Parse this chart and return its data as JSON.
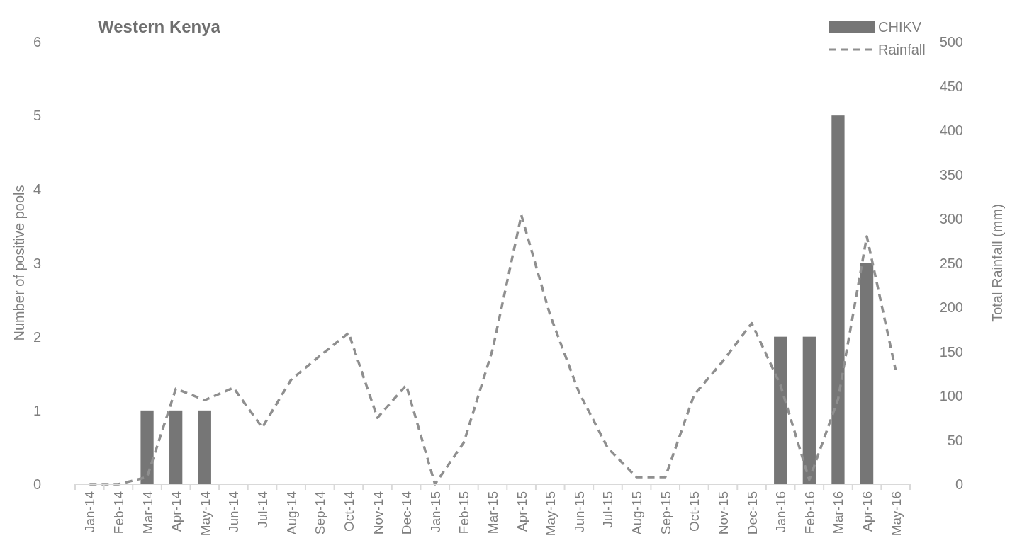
{
  "chart_data": {
    "type": "bar",
    "title": "Western Kenya",
    "ylabel": "Number of positive pools",
    "y2label": "Total Rainfall (mm)",
    "categories": [
      "Jan-14",
      "Feb-14",
      "Mar-14",
      "Apr-14",
      "May-14",
      "Jun-14",
      "Jul-14",
      "Aug-14",
      "Sep-14",
      "Oct-14",
      "Nov-14",
      "Dec-14",
      "Jan-15",
      "Feb-15",
      "Mar-15",
      "Apr-15",
      "May-15",
      "Jun-15",
      "Jul-15",
      "Aug-15",
      "Sep-15",
      "Oct-15",
      "Nov-15",
      "Dec-15",
      "Jan-16",
      "Feb-16",
      "Mar-16",
      "Apr-16",
      "May-16"
    ],
    "series": [
      {
        "name": "CHIKV",
        "color": "#767676",
        "values": [
          0,
          0,
          1,
          1,
          1,
          0,
          0,
          0,
          0,
          0,
          0,
          0,
          0,
          0,
          0,
          0,
          0,
          0,
          0,
          0,
          0,
          0,
          0,
          0,
          2,
          2,
          5,
          3,
          0
        ]
      },
      {
        "name": "Rainfall",
        "type": "line",
        "axis": "y2",
        "color": "#8f8f8f",
        "line_style": "dashed",
        "values": [
          0,
          0,
          8,
          108,
          95,
          109,
          64,
          118,
          145,
          171,
          75,
          112,
          0,
          47,
          152,
          304,
          191,
          104,
          41,
          8,
          8,
          101,
          139,
          182,
          112,
          5,
          96,
          280,
          129
        ]
      }
    ],
    "ylim": [
      0,
      6
    ],
    "yticks": [
      0,
      1,
      2,
      3,
      4,
      5,
      6
    ],
    "y2lim": [
      0,
      500
    ],
    "y2ticks": [
      0,
      50,
      100,
      150,
      200,
      250,
      300,
      350,
      400,
      450,
      500
    ],
    "legend": "top right",
    "grid": false
  }
}
